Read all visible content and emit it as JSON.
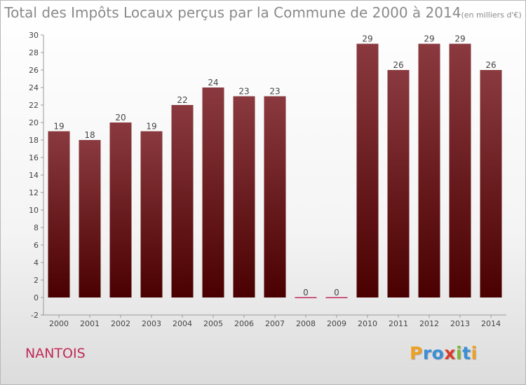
{
  "title_main": "Total des Impôts Locaux perçus par la Commune de 2000 à 2014",
  "title_unit": "(en milliers d'€)",
  "commune": "NANTOIS",
  "logo": {
    "text": "Proxiti",
    "letters": [
      {
        "ch": "P",
        "color": "#f0a020"
      },
      {
        "ch": "r",
        "color": "#3a8fd6"
      },
      {
        "ch": "o",
        "color": "#3a8fd6"
      },
      {
        "ch": "x",
        "color": "#d93b2b"
      },
      {
        "ch": "i",
        "color": "#7cb83a"
      },
      {
        "ch": "t",
        "color": "#3a8fd6"
      },
      {
        "ch": "i",
        "color": "#f0a020"
      }
    ]
  },
  "chart_data": {
    "type": "bar",
    "title": "Total des Impôts Locaux perçus par la Commune de 2000 à 2014",
    "categories": [
      "2000",
      "2001",
      "2002",
      "2003",
      "2004",
      "2005",
      "2006",
      "2007",
      "2008",
      "2009",
      "2010",
      "2011",
      "2012",
      "2013",
      "2014"
    ],
    "values": [
      19,
      18,
      20,
      19,
      22,
      24,
      23,
      23,
      0,
      0,
      29,
      26,
      29,
      29,
      26
    ],
    "value_labels": [
      "19",
      "18",
      "20",
      "19",
      "22",
      "24",
      "23",
      "23",
      "0",
      "0",
      "29",
      "26",
      "29",
      "29",
      "26"
    ],
    "ylim": [
      -2,
      30
    ],
    "yticks": [
      -2,
      0,
      2,
      4,
      6,
      8,
      10,
      12,
      14,
      16,
      18,
      20,
      22,
      24,
      26,
      28,
      30
    ],
    "ytick_labels": [
      "-2",
      "0",
      "2",
      "4",
      "6",
      "8",
      "10",
      "12",
      "14",
      "16",
      "18",
      "20",
      "22",
      "24",
      "26",
      "28",
      "30"
    ],
    "grid": false,
    "bar_color_top": "#8a3a3f",
    "bar_color_bottom": "#4a0000",
    "axis_color": "#999999",
    "label_color": "#444444",
    "xlabel": "",
    "ylabel": ""
  }
}
